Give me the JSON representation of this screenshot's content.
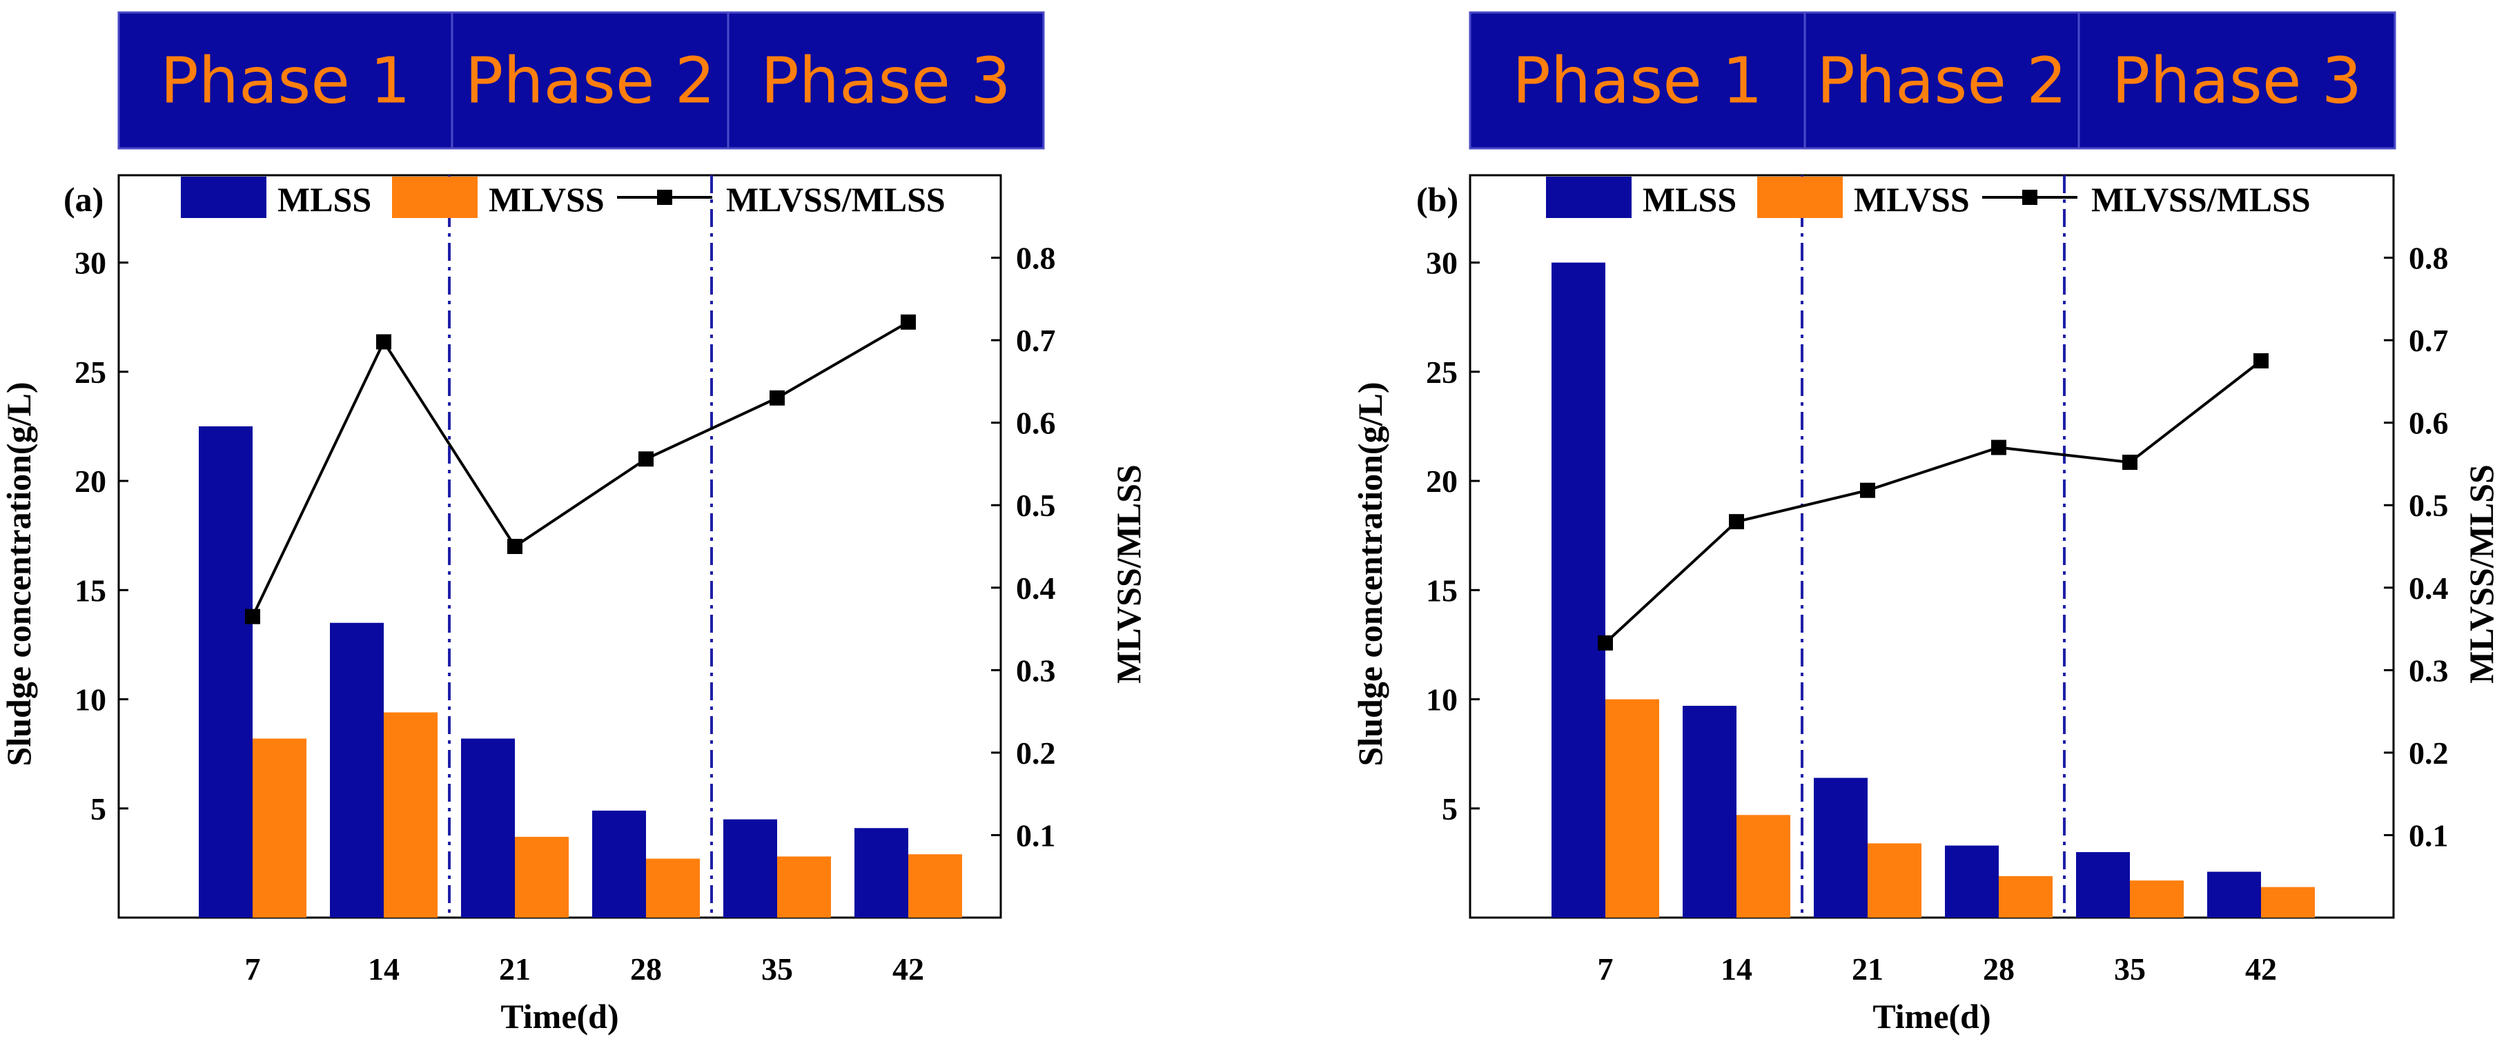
{
  "colors": {
    "mlss": "#0a0aa0",
    "mlvss": "#ff7f0e",
    "ratio": "#000000",
    "phase_bg": "#0a0aa0",
    "phase_text": "#ff7f0e",
    "divider": "#1f1fa8"
  },
  "chart_data": [
    {
      "type": "bar",
      "panel_label": "(a)",
      "phases": [
        "Phase 1",
        "Phase 2",
        "Phase 3"
      ],
      "phase_boundaries_x": [
        17.5,
        31.5
      ],
      "categories": [
        "7",
        "14",
        "21",
        "28",
        "35",
        "42"
      ],
      "xlabel": "Time(d)",
      "ylabel": "Sludge concentration(g/L)",
      "y2label": "MLVSS/MLSS",
      "ylim": [
        0,
        34
      ],
      "yticks": [
        "5",
        "10",
        "15",
        "20",
        "25",
        "30"
      ],
      "y2lim": [
        0,
        0.9
      ],
      "y2ticks": [
        "0.1",
        "0.2",
        "0.3",
        "0.4",
        "0.5",
        "0.6",
        "0.7",
        "0.8"
      ],
      "legend": [
        "MLSS",
        "MLVSS",
        "MLVSS/MLSS"
      ],
      "series": [
        {
          "name": "MLSS",
          "axis": "left",
          "values": [
            22.5,
            13.5,
            8.2,
            4.9,
            4.5,
            4.1
          ]
        },
        {
          "name": "MLVSS",
          "axis": "left",
          "values": [
            8.2,
            9.4,
            3.7,
            2.7,
            2.8,
            2.9
          ]
        },
        {
          "name": "MLVSS/MLSS",
          "axis": "right",
          "values": [
            0.365,
            0.698,
            0.45,
            0.556,
            0.63,
            0.722
          ]
        }
      ]
    },
    {
      "type": "bar",
      "panel_label": "(b)",
      "phases": [
        "Phase 1",
        "Phase 2",
        "Phase 3"
      ],
      "phase_boundaries_x": [
        17.5,
        31.5
      ],
      "categories": [
        "7",
        "14",
        "21",
        "28",
        "35",
        "42"
      ],
      "xlabel": "Time(d)",
      "ylabel": "Sludge concentration(g/L)",
      "y2label": "MLVSS/MLSS",
      "ylim": [
        0,
        34
      ],
      "yticks": [
        "5",
        "10",
        "15",
        "20",
        "25",
        "30"
      ],
      "y2lim": [
        0,
        0.9
      ],
      "y2ticks": [
        "0.1",
        "0.2",
        "0.3",
        "0.4",
        "0.5",
        "0.6",
        "0.7",
        "0.8"
      ],
      "legend": [
        "MLSS",
        "MLVSS",
        "MLVSS/MLSS"
      ],
      "series": [
        {
          "name": "MLSS",
          "axis": "left",
          "values": [
            30.0,
            9.7,
            6.4,
            3.3,
            3.0,
            2.1
          ]
        },
        {
          "name": "MLVSS",
          "axis": "left",
          "values": [
            10.0,
            4.7,
            3.4,
            1.9,
            1.7,
            1.4
          ]
        },
        {
          "name": "MLVSS/MLSS",
          "axis": "right",
          "values": [
            0.333,
            0.48,
            0.518,
            0.57,
            0.552,
            0.675
          ]
        }
      ]
    }
  ]
}
